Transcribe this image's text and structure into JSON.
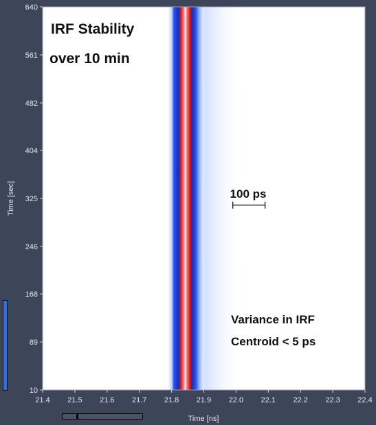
{
  "chart_data": {
    "type": "heatmap",
    "title": "IRF Stability",
    "subtitle": "over 10 min",
    "xlabel": "Time [ns]",
    "ylabel": "Time [sec]",
    "xlim": [
      21.4,
      22.4
    ],
    "ylim": [
      10,
      640
    ],
    "x_ticks": [
      "21.4",
      "21.5",
      "21.6",
      "21.7",
      "21.8",
      "21.9",
      "22.0",
      "22.1",
      "22.2",
      "22.3",
      "22.4"
    ],
    "y_ticks": [
      "10",
      "89",
      "168",
      "246",
      "325",
      "404",
      "482",
      "561",
      "640"
    ],
    "peak_center_ns": 21.845,
    "peak_core_width_ns": 0.075,
    "peak_outer_width_ns": 0.12,
    "tail_extent_ns": 22.02,
    "colormap": [
      "#ffffff",
      "#2b63ff",
      "#1a2f9c",
      "#d41818",
      "#ffffff"
    ],
    "scale_bar": {
      "label": "100 ps",
      "from_ns": 21.99,
      "to_ns": 22.09,
      "at_sec": 314
    },
    "annotations": {
      "variance_line1": "Variance in IRF",
      "variance_line2": "Centroid < 5 ps"
    }
  }
}
